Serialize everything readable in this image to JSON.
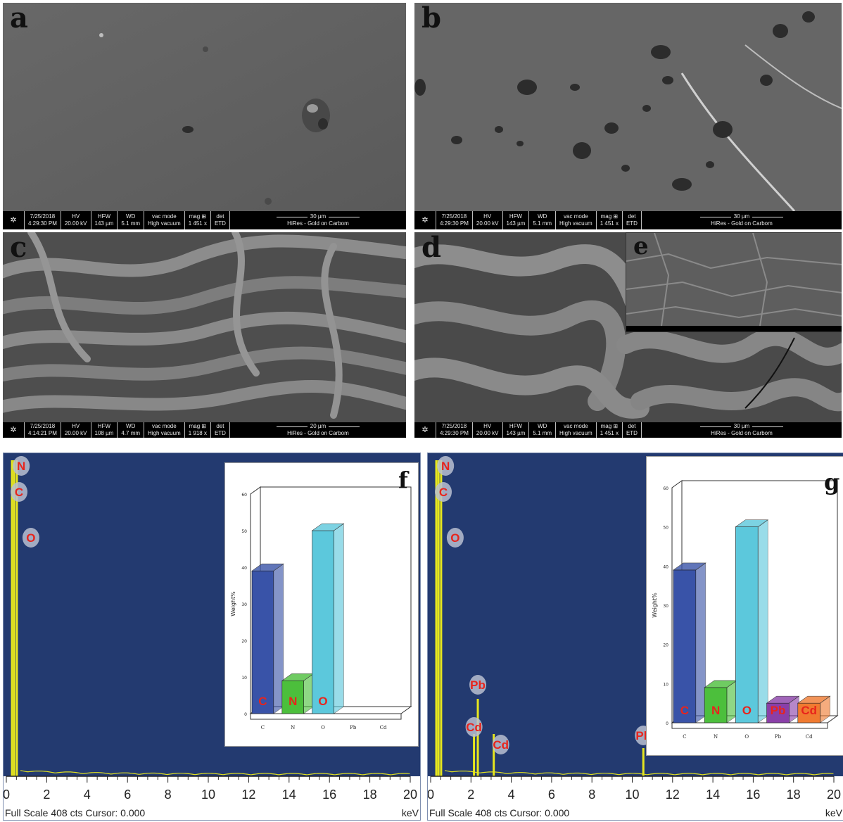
{
  "panels": {
    "a": {
      "label": "a"
    },
    "b": {
      "label": "b"
    },
    "c": {
      "label": "c"
    },
    "d": {
      "label": "d"
    },
    "e": {
      "label": "e"
    },
    "f": {
      "label": "f"
    },
    "g": {
      "label": "g"
    }
  },
  "infobar_headers": {
    "hv": "HV",
    "hfw": "HFW",
    "wd": "WD",
    "vac": "vac mode",
    "mag": "mag ⊞",
    "det": "det"
  },
  "sem_info": {
    "a": {
      "date": "7/25/2018",
      "time": "4:29:30 PM",
      "hv": "20.00 kV",
      "hfw": "143 µm",
      "wd": "5.1 mm",
      "vac": "High vacuum",
      "mag": "1 451 x",
      "det": "ETD",
      "scale": "30 µm",
      "caption": "HiRes - Gold on Carbom"
    },
    "b": {
      "date": "7/25/2018",
      "time": "4:29:30 PM",
      "hv": "20.00 kV",
      "hfw": "143 µm",
      "wd": "5.1 mm",
      "vac": "High vacuum",
      "mag": "1 451 x",
      "det": "ETD",
      "scale": "30 µm",
      "caption": "HiRes - Gold on Carbom"
    },
    "c": {
      "date": "7/25/2018",
      "time": "4:14:21 PM",
      "hv": "20.00 kV",
      "hfw": "108 µm",
      "wd": "4.7 mm",
      "vac": "High vacuum",
      "mag": "1 918 x",
      "det": "ETD",
      "scale": "20 µm",
      "caption": "HiRes - Gold on Carbom"
    },
    "d": {
      "date": "7/25/2018",
      "time": "4:29:30 PM",
      "hv": "20.00 kV",
      "hfw": "143 µm",
      "wd": "5.1 mm",
      "vac": "High vacuum",
      "mag": "1 451 x",
      "det": "ETD",
      "scale": "30 µm",
      "caption": "HiRes - Gold on Carbom"
    }
  },
  "chart_data": [
    {
      "type": "line",
      "panel": "f",
      "xlabel": "keV",
      "xlim": [
        0,
        20
      ],
      "x_ticks": [
        0,
        2,
        4,
        6,
        8,
        10,
        12,
        14,
        16,
        18,
        20
      ],
      "footer": "Full Scale 408 cts Cursor: 0.000",
      "peaks": [
        {
          "x": 0.28,
          "label": "C"
        },
        {
          "x": 0.39,
          "label": "N"
        },
        {
          "x": 0.52,
          "label": "O"
        }
      ],
      "inset": {
        "type": "bar",
        "ylabel": "Weight%",
        "ylim": [
          0,
          60
        ],
        "y_ticks": [
          0,
          10,
          20,
          30,
          40,
          50,
          60
        ],
        "categories": [
          "C",
          "N",
          "O",
          "Pb",
          "Cd"
        ],
        "values": [
          39,
          9,
          50,
          0,
          0
        ],
        "colors": [
          "#3953a8",
          "#4cbf3c",
          "#5cc8dc",
          "#8a3fa8",
          "#f07a30"
        ]
      }
    },
    {
      "type": "line",
      "panel": "g",
      "xlabel": "keV",
      "xlim": [
        0,
        20
      ],
      "x_ticks": [
        0,
        2,
        4,
        6,
        8,
        10,
        12,
        14,
        16,
        18,
        20
      ],
      "footer": "Full Scale 408 cts Cursor: 0.000",
      "peaks": [
        {
          "x": 0.28,
          "label": "C"
        },
        {
          "x": 0.39,
          "label": "N"
        },
        {
          "x": 0.52,
          "label": "O"
        },
        {
          "x": 2.34,
          "label": "Pb"
        },
        {
          "x": 3.13,
          "label": "Cd"
        },
        {
          "x": 10.55,
          "label": "Pb"
        },
        {
          "x": 2.15,
          "label": "Cd"
        }
      ],
      "inset": {
        "type": "bar",
        "ylabel": "Weight%",
        "ylim": [
          0,
          60
        ],
        "y_ticks": [
          0,
          10,
          20,
          30,
          40,
          50,
          60
        ],
        "categories": [
          "C",
          "N",
          "O",
          "Pb",
          "Cd"
        ],
        "values": [
          39,
          9,
          50,
          5,
          5
        ],
        "colors": [
          "#3953a8",
          "#4cbf3c",
          "#5cc8dc",
          "#8a3fa8",
          "#f07a30"
        ]
      }
    }
  ]
}
